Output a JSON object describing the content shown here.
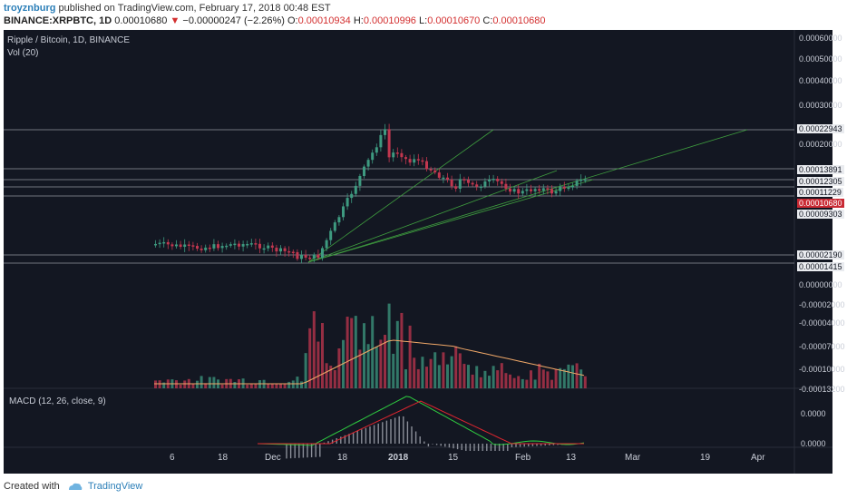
{
  "header": {
    "author": "troyznburg",
    "published_text": "published on TradingView.com, February 17, 2018 00:48 EST",
    "symbol": "BINANCE:XRPBTC, 1D",
    "last": "0.00010680",
    "arrow": "▼",
    "change": "−0.00000247 (−2.26%)",
    "o_label": "O:",
    "o_value": "0.00010934",
    "h_label": "H:",
    "h_value": "0.00010996",
    "l_label": "L:",
    "l_value": "0.00010670",
    "c_label": "C:",
    "c_value": "0.00010680"
  },
  "chart": {
    "title": "Ripple / Bitcoin, 1D, BINANCE",
    "volume_label": "Vol (20)",
    "macd_label": "MACD (12, 26, close, 9)",
    "colors": {
      "background": "#131722",
      "up": "#3e9a80",
      "down": "#c2374f",
      "trendline": "#3f9e3f",
      "hline": "#b2b5be",
      "vol_ma": "#f0a868",
      "macd": "#2ecc40",
      "signal": "#e0262f",
      "hist": "#8a8e98",
      "price_badge": "#c92a34"
    },
    "price_axis": [
      {
        "text": "0.00060000",
        "highlight": false
      },
      {
        "text": "0.00050000",
        "highlight": false
      },
      {
        "text": "0.00040000",
        "highlight": false
      },
      {
        "text": "0.00030000",
        "highlight": false
      },
      {
        "text": "0.00022943",
        "highlight": true
      },
      {
        "text": "0.00020000",
        "highlight": false
      },
      {
        "text": "0.00013891",
        "highlight": true
      },
      {
        "text": "0.00012305",
        "highlight": true
      },
      {
        "text": "0.00011229",
        "highlight": true
      },
      {
        "text": "0.00010680",
        "highlight": "red"
      },
      {
        "text": "0.00009303",
        "highlight": true
      },
      {
        "text": "0.00002190",
        "highlight": true
      },
      {
        "text": "0.00001415",
        "highlight": true
      },
      {
        "text": "0.00000000",
        "highlight": false
      },
      {
        "text": "-0.00002000",
        "highlight": false
      },
      {
        "text": "-0.00004000",
        "highlight": false
      },
      {
        "text": "-0.00007000",
        "highlight": false
      },
      {
        "text": "-0.00010000",
        "highlight": false
      },
      {
        "text": "-0.00013200",
        "highlight": false
      }
    ],
    "macd_axis": [
      "0.0000",
      "0.0000"
    ],
    "time_axis": [
      "6",
      "18",
      "Dec",
      "18",
      "2018",
      "15",
      "Feb",
      "13",
      "Mar",
      "19",
      "Apr"
    ]
  },
  "footer": {
    "created_with": "Created with",
    "brand": "TradingView"
  }
}
